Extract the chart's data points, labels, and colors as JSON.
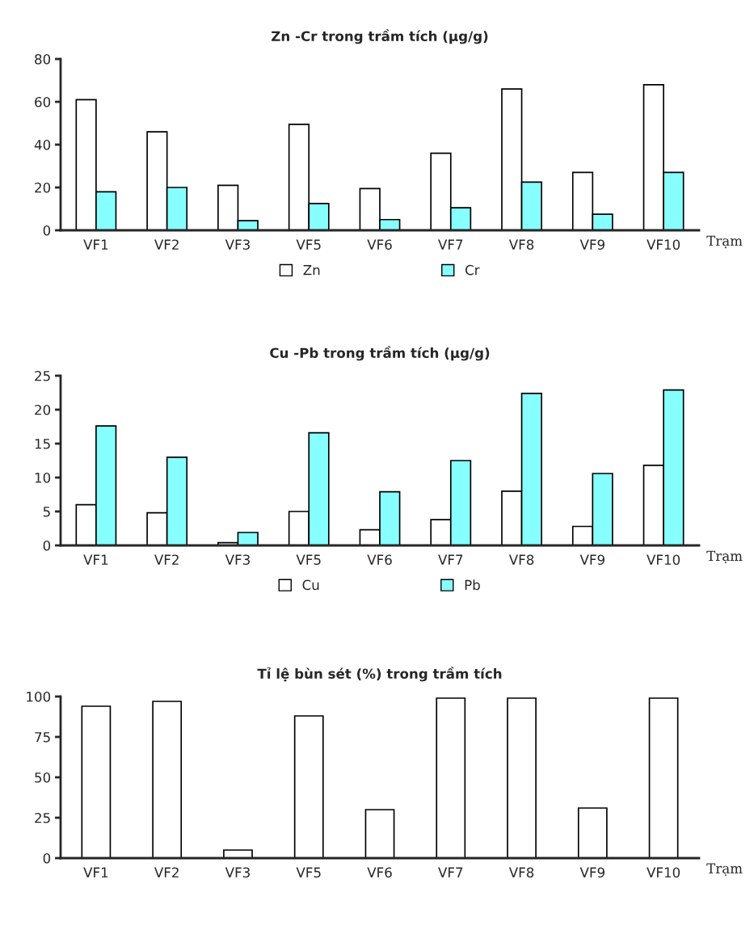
{
  "chart_data": [
    {
      "type": "bar",
      "title": "Zn -Cr trong trầm tích (μg/g)",
      "xlabel": "Trạm",
      "categories": [
        "VF1",
        "VF2",
        "VF3",
        "VF5",
        "VF6",
        "VF7",
        "VF8",
        "VF9",
        "VF10"
      ],
      "series": [
        {
          "name": "Zn",
          "color": "#ffffff",
          "values": [
            61,
            46,
            21,
            49.5,
            19.5,
            36,
            66,
            27,
            68
          ]
        },
        {
          "name": "Cr",
          "color": "#88ffff",
          "values": [
            18,
            20,
            4.5,
            12.5,
            5,
            10.5,
            22.5,
            7.5,
            27
          ]
        }
      ],
      "ylim": [
        0,
        80
      ],
      "yticks": [
        0,
        20,
        40,
        60,
        80
      ],
      "grid": false,
      "legend": "bottom"
    },
    {
      "type": "bar",
      "title": "Cu -Pb trong trầm tích (μg/g)",
      "xlabel": "Trạm",
      "categories": [
        "VF1",
        "VF2",
        "VF3",
        "VF5",
        "VF6",
        "VF7",
        "VF8",
        "VF9",
        "VF10"
      ],
      "series": [
        {
          "name": "Cu",
          "color": "#ffffff",
          "values": [
            6,
            4.8,
            0.4,
            5,
            2.3,
            3.8,
            8,
            2.8,
            11.8
          ]
        },
        {
          "name": "Pb",
          "color": "#88ffff",
          "values": [
            17.6,
            13,
            1.9,
            16.6,
            7.9,
            12.5,
            22.4,
            10.6,
            22.9
          ]
        }
      ],
      "ylim": [
        0,
        25
      ],
      "yticks": [
        0,
        5,
        10,
        15,
        20,
        25
      ],
      "grid": false,
      "legend": "bottom"
    },
    {
      "type": "bar",
      "title": "Tỉ lệ bùn sét (%) trong trầm tích",
      "xlabel": "Trạm",
      "categories": [
        "VF1",
        "VF2",
        "VF3",
        "VF5",
        "VF6",
        "VF7",
        "VF8",
        "VF9",
        "VF10"
      ],
      "series": [
        {
          "color": "#ffffff",
          "values": [
            94,
            97,
            5,
            88,
            30,
            99,
            99,
            31,
            99
          ]
        }
      ],
      "ylim": [
        0,
        100
      ],
      "yticks": [
        0,
        25,
        50,
        75,
        100
      ],
      "grid": false
    }
  ]
}
